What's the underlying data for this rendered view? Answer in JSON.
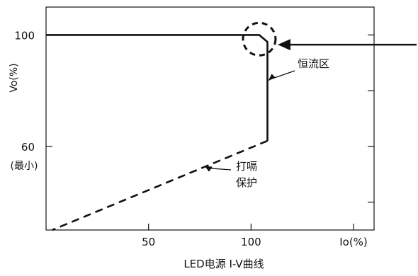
{
  "chart_data": {
    "type": "line",
    "title": "LED电源 I-V曲线",
    "xlabel": "Io(%)",
    "ylabel": "Vo(%)",
    "xlim": [
      0,
      160
    ],
    "ylim": [
      30,
      110
    ],
    "grid": false,
    "x_ticks": [
      {
        "value": 50,
        "label": "50"
      },
      {
        "value": 100,
        "label": "100"
      }
    ],
    "y_ticks": [
      {
        "value": 100,
        "label": "100"
      },
      {
        "value": 60,
        "label": "60"
      }
    ],
    "y_min_note": "(最小)",
    "series": [
      {
        "style": "solid",
        "points": [
          [
            0,
            100
          ],
          [
            104,
            100
          ],
          [
            108,
            97.5
          ],
          [
            108,
            62
          ]
        ]
      },
      {
        "style": "dashed",
        "points": [
          [
            108,
            62
          ],
          [
            3,
            30
          ]
        ]
      }
    ],
    "annotations": [
      {
        "text": "恒流区",
        "target": [
          108,
          84
        ]
      },
      {
        "text": "打嗝\n保护",
        "target": [
          76,
          55
        ]
      }
    ]
  }
}
